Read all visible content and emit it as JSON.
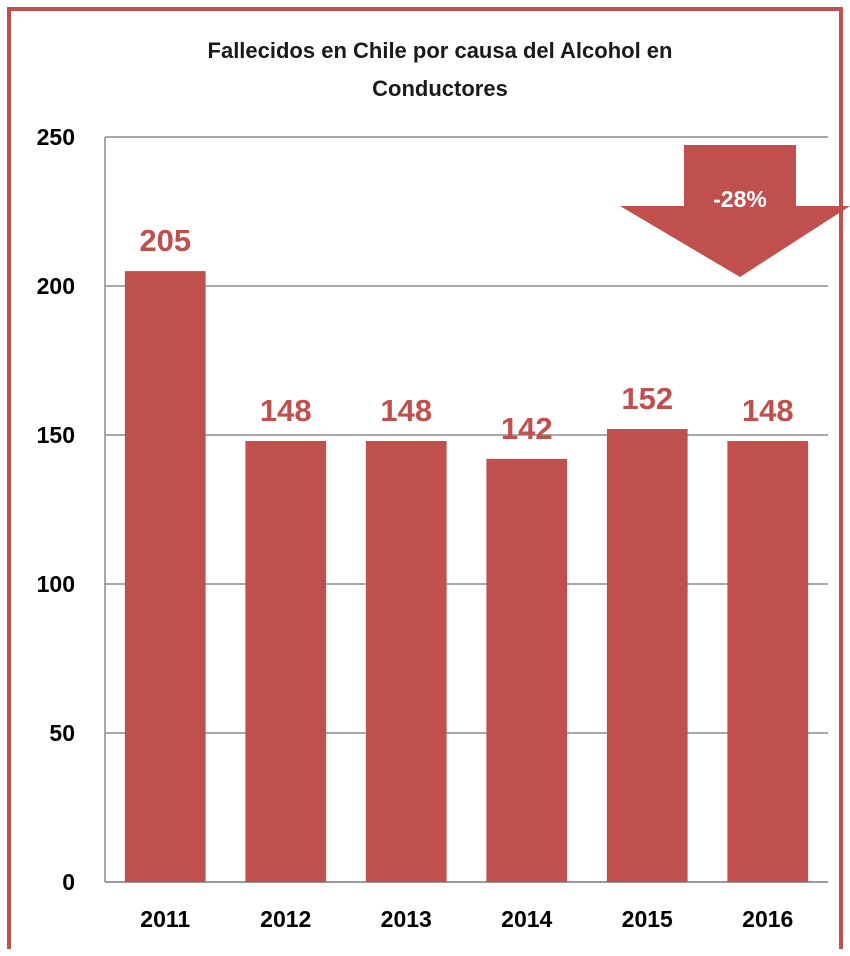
{
  "chart_data": {
    "type": "bar",
    "title_line1": "Fallecidos en Chile por causa del Alcohol en",
    "title_line2": "Conductores",
    "categories": [
      "2011",
      "2012",
      "2013",
      "2014",
      "2015",
      "2016"
    ],
    "values": [
      205,
      148,
      148,
      142,
      152,
      148
    ],
    "data_labels": [
      "205",
      "148",
      "148",
      "142",
      "152",
      "148"
    ],
    "y_ticks": [
      "0",
      "50",
      "100",
      "150",
      "200",
      "250"
    ],
    "ylim": [
      0,
      250
    ],
    "grid": true,
    "legend": "none",
    "annotation": {
      "text": "-28%",
      "shape": "down-arrow"
    },
    "colors": {
      "bar": "#c0504d",
      "border": "#c0504d",
      "grid": "#8c8c8c"
    }
  }
}
